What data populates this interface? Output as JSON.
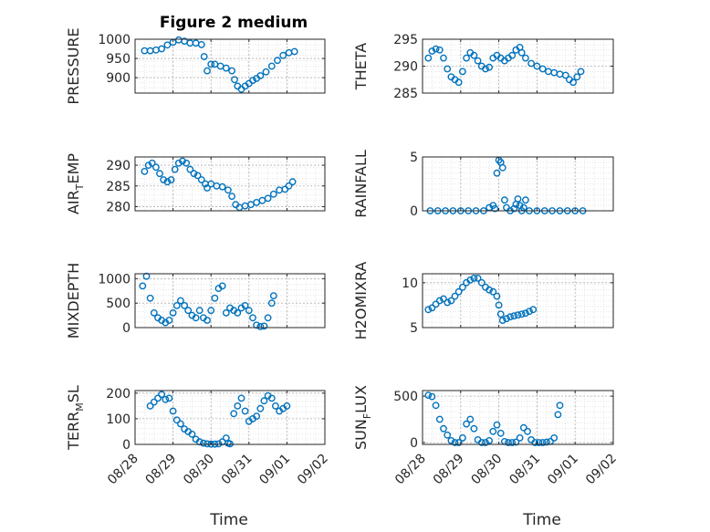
{
  "figure": {
    "title": "Figure 2 medium",
    "xlabel": "Time"
  },
  "colors": {
    "marker": "#0072BD",
    "axis": "#262626",
    "grid": "#b0b0b0"
  },
  "chart_data": [
    {
      "type": "scatter",
      "ylabel": "PRESSURE",
      "ylim": [
        860,
        1000
      ],
      "yticks": [
        "900",
        "950",
        "1000"
      ],
      "ytick_values": [
        900,
        950,
        1000
      ],
      "xlim": [
        0,
        5
      ],
      "xtick_labels": [
        "08/28",
        "08/29",
        "08/30",
        "08/31",
        "09/01",
        "09/02"
      ],
      "show_xticklabels": false,
      "grid": true,
      "points": [
        [
          0.25,
          970
        ],
        [
          0.4,
          970
        ],
        [
          0.55,
          972
        ],
        [
          0.7,
          975
        ],
        [
          0.85,
          985
        ],
        [
          1.0,
          992
        ],
        [
          1.15,
          998
        ],
        [
          1.3,
          995
        ],
        [
          1.45,
          990
        ],
        [
          1.6,
          990
        ],
        [
          1.75,
          986
        ],
        [
          1.82,
          955
        ],
        [
          1.9,
          918
        ],
        [
          2.0,
          935
        ],
        [
          2.1,
          935
        ],
        [
          2.25,
          930
        ],
        [
          2.4,
          925
        ],
        [
          2.55,
          918
        ],
        [
          2.62,
          895
        ],
        [
          2.7,
          878
        ],
        [
          2.8,
          870
        ],
        [
          2.9,
          878
        ],
        [
          3.0,
          885
        ],
        [
          3.1,
          893
        ],
        [
          3.2,
          898
        ],
        [
          3.3,
          905
        ],
        [
          3.45,
          915
        ],
        [
          3.6,
          930
        ],
        [
          3.75,
          945
        ],
        [
          3.9,
          958
        ],
        [
          4.05,
          965
        ],
        [
          4.2,
          968
        ]
      ]
    },
    {
      "type": "scatter",
      "ylabel": "THETA",
      "ylim": [
        285,
        295
      ],
      "yticks": [
        "285",
        "290",
        "295"
      ],
      "ytick_values": [
        285,
        290,
        295
      ],
      "xlim": [
        0,
        5
      ],
      "xtick_labels": [
        "08/28",
        "08/29",
        "08/30",
        "08/31",
        "09/01",
        "09/02"
      ],
      "show_xticklabels": false,
      "grid": true,
      "points": [
        [
          0.15,
          291.5
        ],
        [
          0.25,
          292.8
        ],
        [
          0.35,
          293.2
        ],
        [
          0.45,
          293.0
        ],
        [
          0.55,
          291.5
        ],
        [
          0.65,
          289.5
        ],
        [
          0.75,
          288.0
        ],
        [
          0.85,
          287.5
        ],
        [
          0.95,
          287.0
        ],
        [
          1.05,
          289.0
        ],
        [
          1.15,
          291.5
        ],
        [
          1.25,
          292.5
        ],
        [
          1.35,
          292.0
        ],
        [
          1.45,
          291.0
        ],
        [
          1.55,
          290.0
        ],
        [
          1.65,
          289.5
        ],
        [
          1.75,
          289.8
        ],
        [
          1.85,
          291.5
        ],
        [
          1.95,
          292.0
        ],
        [
          2.05,
          291.5
        ],
        [
          2.15,
          291.0
        ],
        [
          2.25,
          291.5
        ],
        [
          2.35,
          292.0
        ],
        [
          2.45,
          293.0
        ],
        [
          2.55,
          293.5
        ],
        [
          2.6,
          292.5
        ],
        [
          2.7,
          291.5
        ],
        [
          2.85,
          290.5
        ],
        [
          3.0,
          290.0
        ],
        [
          3.15,
          289.5
        ],
        [
          3.3,
          289.0
        ],
        [
          3.45,
          288.8
        ],
        [
          3.6,
          288.5
        ],
        [
          3.75,
          288.3
        ],
        [
          3.85,
          287.5
        ],
        [
          3.95,
          287.0
        ],
        [
          4.05,
          288.0
        ],
        [
          4.15,
          289.0
        ]
      ]
    },
    {
      "type": "scatter",
      "ylabel": "AIR_TEMP",
      "ylim": [
        279,
        292
      ],
      "yticks": [
        "280",
        "285",
        "290"
      ],
      "ytick_values": [
        280,
        285,
        290
      ],
      "xlim": [
        0,
        5
      ],
      "xtick_labels": [
        "08/28",
        "08/29",
        "08/30",
        "08/31",
        "09/01",
        "09/02"
      ],
      "show_xticklabels": false,
      "grid": true,
      "points": [
        [
          0.25,
          288.5
        ],
        [
          0.35,
          290.0
        ],
        [
          0.45,
          290.5
        ],
        [
          0.55,
          289.5
        ],
        [
          0.65,
          288.0
        ],
        [
          0.75,
          286.5
        ],
        [
          0.85,
          286.0
        ],
        [
          0.95,
          286.5
        ],
        [
          1.05,
          289.0
        ],
        [
          1.15,
          290.5
        ],
        [
          1.25,
          291.0
        ],
        [
          1.35,
          290.5
        ],
        [
          1.45,
          289.0
        ],
        [
          1.55,
          288.0
        ],
        [
          1.65,
          287.5
        ],
        [
          1.75,
          286.5
        ],
        [
          1.85,
          285.5
        ],
        [
          1.9,
          284.5
        ],
        [
          2.0,
          285.5
        ],
        [
          2.15,
          285.0
        ],
        [
          2.3,
          284.8
        ],
        [
          2.45,
          284.0
        ],
        [
          2.55,
          282.5
        ],
        [
          2.65,
          280.5
        ],
        [
          2.75,
          279.8
        ],
        [
          2.9,
          280.2
        ],
        [
          3.05,
          280.5
        ],
        [
          3.2,
          281.0
        ],
        [
          3.35,
          281.5
        ],
        [
          3.5,
          282.0
        ],
        [
          3.65,
          283.0
        ],
        [
          3.8,
          284.0
        ],
        [
          3.95,
          284.2
        ],
        [
          4.05,
          285.0
        ],
        [
          4.15,
          286.0
        ]
      ]
    },
    {
      "type": "scatter",
      "ylabel": "RAINFALL",
      "ylim": [
        0,
        5
      ],
      "yticks": [
        "0",
        "5"
      ],
      "ytick_values": [
        0,
        5
      ],
      "xlim": [
        0,
        5
      ],
      "xtick_labels": [
        "08/28",
        "08/29",
        "08/30",
        "08/31",
        "09/01",
        "09/02"
      ],
      "show_xticklabels": false,
      "grid": true,
      "points": [
        [
          0.2,
          0
        ],
        [
          0.4,
          0
        ],
        [
          0.6,
          0
        ],
        [
          0.8,
          0
        ],
        [
          1.0,
          0
        ],
        [
          1.2,
          0
        ],
        [
          1.4,
          0
        ],
        [
          1.6,
          0
        ],
        [
          1.75,
          0.3
        ],
        [
          1.85,
          0.5
        ],
        [
          1.9,
          0.2
        ],
        [
          1.95,
          3.5
        ],
        [
          2.0,
          4.7
        ],
        [
          2.05,
          4.5
        ],
        [
          2.1,
          4.0
        ],
        [
          2.15,
          1.0
        ],
        [
          2.2,
          0.3
        ],
        [
          2.3,
          0
        ],
        [
          2.4,
          0.2
        ],
        [
          2.45,
          0.6
        ],
        [
          2.5,
          1.1
        ],
        [
          2.55,
          0.5
        ],
        [
          2.6,
          0
        ],
        [
          2.65,
          0.3
        ],
        [
          2.7,
          1.0
        ],
        [
          2.8,
          0
        ],
        [
          3.0,
          0
        ],
        [
          3.2,
          0
        ],
        [
          3.4,
          0
        ],
        [
          3.6,
          0
        ],
        [
          3.8,
          0
        ],
        [
          4.0,
          0
        ],
        [
          4.2,
          0
        ]
      ]
    },
    {
      "type": "scatter",
      "ylabel": "MIXDEPTH",
      "ylim": [
        0,
        1100
      ],
      "yticks": [
        "0",
        "500",
        "1000"
      ],
      "ytick_values": [
        0,
        500,
        1000
      ],
      "xlim": [
        0,
        5
      ],
      "xtick_labels": [
        "08/28",
        "08/29",
        "08/30",
        "08/31",
        "09/01",
        "09/02"
      ],
      "show_xticklabels": false,
      "grid": true,
      "points": [
        [
          0.2,
          850
        ],
        [
          0.3,
          1050
        ],
        [
          0.4,
          600
        ],
        [
          0.5,
          300
        ],
        [
          0.6,
          200
        ],
        [
          0.7,
          150
        ],
        [
          0.8,
          100
        ],
        [
          0.9,
          150
        ],
        [
          1.0,
          300
        ],
        [
          1.1,
          450
        ],
        [
          1.2,
          550
        ],
        [
          1.3,
          450
        ],
        [
          1.4,
          350
        ],
        [
          1.5,
          250
        ],
        [
          1.6,
          200
        ],
        [
          1.7,
          350
        ],
        [
          1.8,
          200
        ],
        [
          1.9,
          150
        ],
        [
          2.0,
          350
        ],
        [
          2.1,
          600
        ],
        [
          2.2,
          800
        ],
        [
          2.3,
          850
        ],
        [
          2.4,
          300
        ],
        [
          2.5,
          400
        ],
        [
          2.6,
          350
        ],
        [
          2.7,
          300
        ],
        [
          2.8,
          400
        ],
        [
          2.9,
          450
        ],
        [
          3.0,
          350
        ],
        [
          3.1,
          200
        ],
        [
          3.2,
          50
        ],
        [
          3.3,
          20
        ],
        [
          3.4,
          30
        ],
        [
          3.5,
          200
        ],
        [
          3.6,
          500
        ],
        [
          3.65,
          650
        ]
      ]
    },
    {
      "type": "scatter",
      "ylabel": "H2OMIXRA",
      "ylim": [
        5,
        11
      ],
      "yticks": [
        "5",
        "10"
      ],
      "ytick_values": [
        5,
        10
      ],
      "xlim": [
        0,
        5
      ],
      "xtick_labels": [
        "08/28",
        "08/29",
        "08/30",
        "08/31",
        "09/01",
        "09/02"
      ],
      "show_xticklabels": false,
      "grid": true,
      "points": [
        [
          0.15,
          7.0
        ],
        [
          0.25,
          7.2
        ],
        [
          0.35,
          7.6
        ],
        [
          0.45,
          8.0
        ],
        [
          0.55,
          8.2
        ],
        [
          0.65,
          7.8
        ],
        [
          0.75,
          8.0
        ],
        [
          0.85,
          8.5
        ],
        [
          0.95,
          9.0
        ],
        [
          1.05,
          9.5
        ],
        [
          1.15,
          10.0
        ],
        [
          1.25,
          10.3
        ],
        [
          1.35,
          10.5
        ],
        [
          1.45,
          10.5
        ],
        [
          1.55,
          10.0
        ],
        [
          1.65,
          9.5
        ],
        [
          1.75,
          9.2
        ],
        [
          1.85,
          9.0
        ],
        [
          1.95,
          8.5
        ],
        [
          2.0,
          7.5
        ],
        [
          2.05,
          6.5
        ],
        [
          2.1,
          5.8
        ],
        [
          2.2,
          6.0
        ],
        [
          2.3,
          6.2
        ],
        [
          2.4,
          6.3
        ],
        [
          2.5,
          6.4
        ],
        [
          2.6,
          6.5
        ],
        [
          2.7,
          6.6
        ],
        [
          2.8,
          6.8
        ],
        [
          2.9,
          7.0
        ]
      ]
    },
    {
      "type": "scatter",
      "ylabel": "TERR_MSL",
      "ylim": [
        0,
        210
      ],
      "yticks": [
        "0",
        "100",
        "200"
      ],
      "ytick_values": [
        0,
        100,
        200
      ],
      "xlim": [
        0,
        5
      ],
      "xtick_labels": [
        "08/28",
        "08/29",
        "08/30",
        "08/31",
        "09/01",
        "09/02"
      ],
      "show_xticklabels": true,
      "grid": true,
      "points": [
        [
          0.4,
          150
        ],
        [
          0.5,
          165
        ],
        [
          0.6,
          180
        ],
        [
          0.7,
          195
        ],
        [
          0.8,
          175
        ],
        [
          0.9,
          180
        ],
        [
          1.0,
          130
        ],
        [
          1.1,
          95
        ],
        [
          1.2,
          80
        ],
        [
          1.3,
          60
        ],
        [
          1.4,
          50
        ],
        [
          1.5,
          40
        ],
        [
          1.6,
          20
        ],
        [
          1.7,
          10
        ],
        [
          1.8,
          5
        ],
        [
          1.9,
          2
        ],
        [
          2.0,
          1
        ],
        [
          2.1,
          1
        ],
        [
          2.2,
          2
        ],
        [
          2.3,
          10
        ],
        [
          2.4,
          25
        ],
        [
          2.45,
          5
        ],
        [
          2.5,
          2
        ],
        [
          2.6,
          120
        ],
        [
          2.7,
          150
        ],
        [
          2.8,
          180
        ],
        [
          2.9,
          130
        ],
        [
          3.0,
          90
        ],
        [
          3.1,
          100
        ],
        [
          3.2,
          110
        ],
        [
          3.3,
          140
        ],
        [
          3.4,
          170
        ],
        [
          3.5,
          190
        ],
        [
          3.6,
          180
        ],
        [
          3.7,
          150
        ],
        [
          3.8,
          130
        ],
        [
          3.9,
          140
        ],
        [
          4.0,
          150
        ]
      ]
    },
    {
      "type": "scatter",
      "ylabel": "SUN_FLUX",
      "ylim": [
        -20,
        560
      ],
      "yticks": [
        "0",
        "500"
      ],
      "ytick_values": [
        0,
        500
      ],
      "xlim": [
        0,
        5
      ],
      "xtick_labels": [
        "08/28",
        "08/29",
        "08/30",
        "08/31",
        "09/01",
        "09/02"
      ],
      "show_xticklabels": true,
      "grid": true,
      "points": [
        [
          0.15,
          510
        ],
        [
          0.25,
          495
        ],
        [
          0.35,
          400
        ],
        [
          0.45,
          250
        ],
        [
          0.55,
          150
        ],
        [
          0.65,
          80
        ],
        [
          0.75,
          20
        ],
        [
          0.85,
          0
        ],
        [
          0.95,
          0
        ],
        [
          1.05,
          50
        ],
        [
          1.15,
          200
        ],
        [
          1.25,
          250
        ],
        [
          1.35,
          150
        ],
        [
          1.45,
          30
        ],
        [
          1.55,
          0
        ],
        [
          1.65,
          0
        ],
        [
          1.75,
          20
        ],
        [
          1.85,
          120
        ],
        [
          1.95,
          190
        ],
        [
          2.05,
          100
        ],
        [
          2.15,
          10
        ],
        [
          2.25,
          0
        ],
        [
          2.35,
          0
        ],
        [
          2.45,
          5
        ],
        [
          2.55,
          50
        ],
        [
          2.65,
          160
        ],
        [
          2.75,
          120
        ],
        [
          2.85,
          30
        ],
        [
          2.95,
          0
        ],
        [
          3.05,
          0
        ],
        [
          3.15,
          0
        ],
        [
          3.25,
          5
        ],
        [
          3.35,
          10
        ],
        [
          3.45,
          50
        ],
        [
          3.55,
          300
        ],
        [
          3.6,
          400
        ]
      ]
    }
  ]
}
